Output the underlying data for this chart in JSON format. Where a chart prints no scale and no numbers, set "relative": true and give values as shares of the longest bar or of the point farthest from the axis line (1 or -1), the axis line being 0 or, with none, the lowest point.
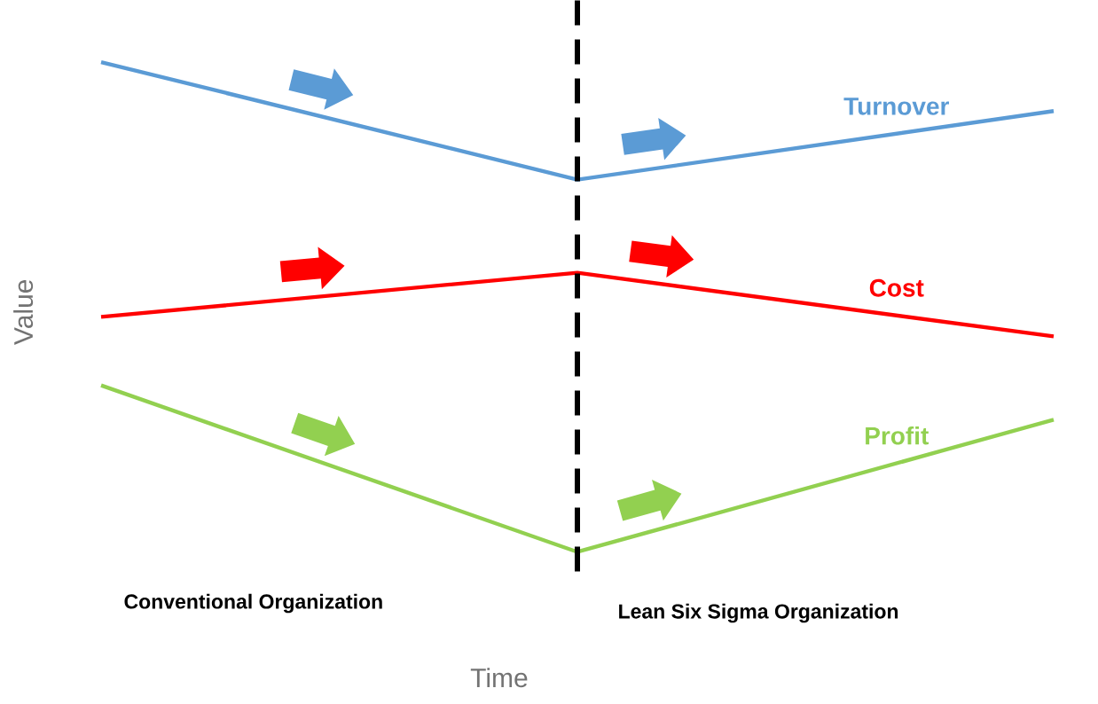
{
  "chart_data": {
    "type": "line",
    "relative": true,
    "xlabel": "Time",
    "ylabel": "Value",
    "categories": [
      null,
      null,
      null
    ],
    "series": [
      {
        "name": "Turnover",
        "color": "#5b9bd5",
        "values": [
          1,
          0.76,
          0.9
        ]
      },
      {
        "name": "Cost",
        "color": "#ff0000",
        "values": [
          0.48,
          0.57,
          0.44
        ]
      },
      {
        "name": "Profit",
        "color": "#92d050",
        "values": [
          0.34,
          0,
          0.27
        ]
      }
    ],
    "annotations": [
      "Conventional Organization",
      "Lean Six Sigma Organization"
    ],
    "legend": false,
    "marker": "none",
    "line_style": "solid"
  }
}
